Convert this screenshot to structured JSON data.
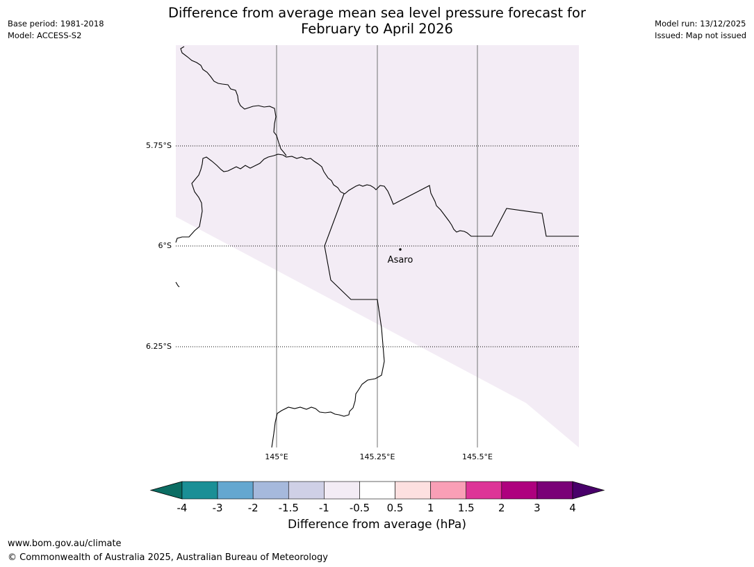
{
  "header": {
    "title_line1": "Difference from average mean sea level pressure forecast for",
    "title_line2": "February to April 2026",
    "base_period": "Base period: 1981-2018",
    "model": "Model: ACCESS-S2",
    "model_run": "Model run: 13/12/2025",
    "issued": "Issued: Map not issued"
  },
  "map": {
    "lat_labels": [
      "5.75°S",
      "6°S",
      "6.25°S"
    ],
    "lon_labels": [
      "145°E",
      "145.25°E",
      "145.5°E"
    ],
    "place_label": "Asaro",
    "land_fill_color": "#f3ecf5",
    "border_color": "#000000",
    "gridline_color": "#888888"
  },
  "colorbar": {
    "tick_labels": [
      "-4",
      "-3",
      "-2",
      "-1.5",
      "-1",
      "-0.5",
      "0.5",
      "1",
      "1.5",
      "2",
      "3",
      "4"
    ],
    "colors": [
      "#1a8f96",
      "#64a7d0",
      "#a6b9dc",
      "#cfd0e6",
      "#f3ecf5",
      "#ffffff",
      "#fde0e0",
      "#f99fb6",
      "#dd3497",
      "#ae017e",
      "#7a0177"
    ],
    "under_color": "#0c6d63",
    "over_color": "#49006a",
    "label": "Difference from average (hPa)"
  },
  "footer": {
    "url": "www.bom.gov.au/climate",
    "copyright": "© Commonwealth of Australia 2025, Australian Bureau of Meteorology"
  }
}
